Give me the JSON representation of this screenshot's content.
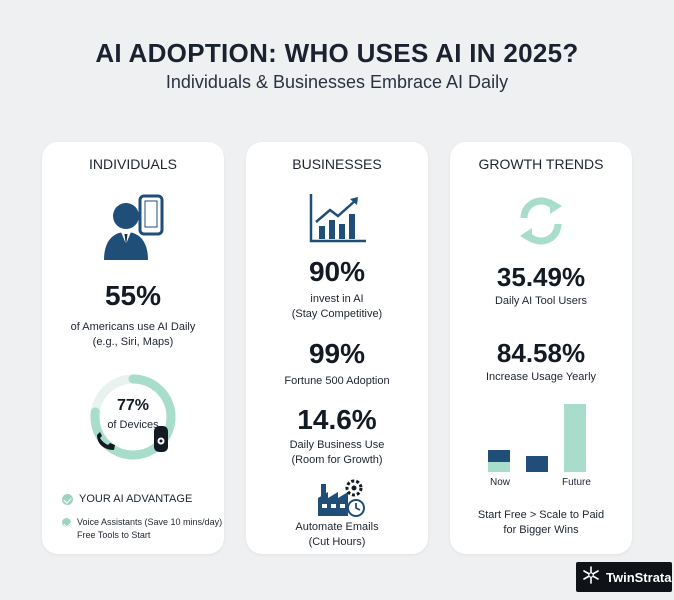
{
  "header": {
    "title": "AI ADOPTION: WHO USES AI IN 2025?",
    "subtitle": "Individuals & Businesses Embrace AI Daily"
  },
  "colors": {
    "navy": "#1f4e79",
    "mint": "#a8dccb",
    "dark": "#141a24"
  },
  "individuals": {
    "heading": "INDIVIDUALS",
    "icon": "person-phone-icon",
    "stat": "55%",
    "desc_line1": "of Americans use AI Daily",
    "desc_line2": "(e.g., Siri, Maps)",
    "ring_fill": 0.77,
    "ring_value": "77%",
    "ring_label": "of Devices",
    "advantage_title": "YOUR AI ADVANTAGE",
    "advantage_line1": "Voice Assistants (Save 10 mins/day)",
    "advantage_line2": "Free Tools to Start"
  },
  "businesses": {
    "heading": "BUSINESSES",
    "icon": "growth-chart-icon",
    "stat1": "90%",
    "stat1_line1": "invest in AI",
    "stat1_line2": "(Stay Competitive)",
    "stat2": "99%",
    "stat2_desc": "Fortune 500 Adoption",
    "stat3": "14.6%",
    "stat3_line1": "Daily Business Use",
    "stat3_line2": "(Room for Growth)",
    "factory_icon": "factory-gear-icon",
    "footer_line1": "Automate Emails",
    "footer_line2": "(Cut Hours)"
  },
  "growth": {
    "heading": "GROWTH TRENDS",
    "icon": "refresh-cycle-icon",
    "stat1": "35.49%",
    "stat1_desc": "Daily AI Tool Users",
    "stat2": "84.58%",
    "stat2_desc": "Increase Usage Yearly",
    "bar_labels": [
      "Now",
      "Future"
    ],
    "footer_line1": "Start Free > Scale to Paid",
    "footer_line2": "for Bigger Wins"
  },
  "logo": {
    "text": "TwinStrata",
    "icon": "snowflake-logo-icon"
  }
}
